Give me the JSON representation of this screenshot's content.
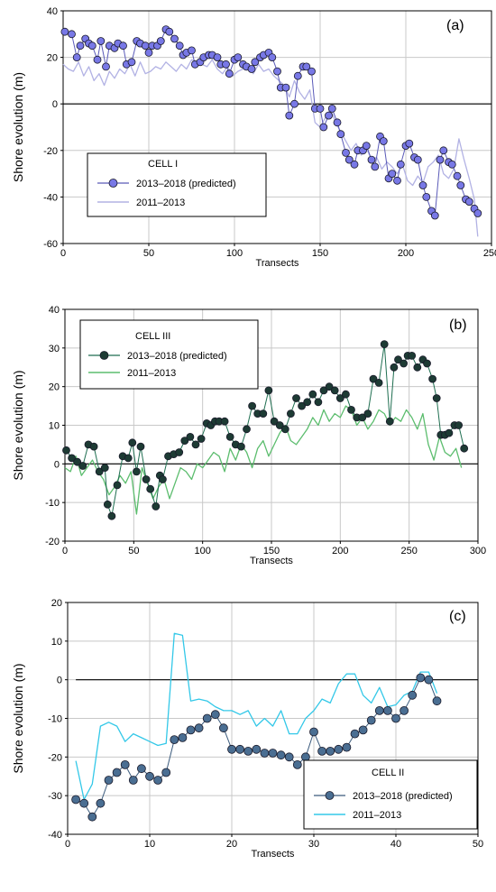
{
  "chart_data": [
    {
      "type": "line",
      "panel_label": "(a)",
      "legend_title": "CELL I",
      "xlabel": "Transects",
      "ylabel": "Shore evolution (m)",
      "xlim": [
        0,
        250
      ],
      "ylim": [
        -60,
        40
      ],
      "xticks": [
        0,
        50,
        100,
        150,
        200,
        250
      ],
      "yticks": [
        -60,
        -40,
        -20,
        0,
        20,
        40
      ],
      "grid": true,
      "legend_position": "lower-left",
      "series": [
        {
          "name": "2013–2018 (predicted)",
          "style": "line-markers",
          "line_color": "#5a5ab8",
          "marker_color": "#7878e6",
          "x": [
            1,
            5,
            8,
            10,
            13,
            15,
            17,
            20,
            22,
            25,
            27,
            30,
            32,
            35,
            37,
            40,
            43,
            45,
            48,
            50,
            52,
            55,
            57,
            60,
            62,
            65,
            68,
            70,
            72,
            75,
            77,
            80,
            82,
            85,
            87,
            90,
            92,
            95,
            97,
            100,
            102,
            105,
            107,
            110,
            112,
            115,
            117,
            120,
            122,
            125,
            127,
            130,
            132,
            135,
            137,
            140,
            142,
            145,
            147,
            150,
            152,
            155,
            157,
            160,
            162,
            165,
            167,
            170,
            172,
            175,
            177,
            180,
            182,
            185,
            187,
            190,
            192,
            195,
            197,
            200,
            202,
            205,
            207,
            210,
            212,
            215,
            217,
            220,
            222,
            225,
            227,
            230,
            232,
            235,
            237,
            240,
            242
          ],
          "y": [
            31,
            30,
            20,
            25,
            28,
            26,
            25,
            19,
            27,
            16,
            25,
            24,
            26,
            25,
            17,
            18,
            27,
            26,
            25,
            22,
            25,
            25,
            27,
            32,
            31,
            28,
            25,
            21,
            22,
            23,
            17,
            18,
            20,
            21,
            21,
            20,
            17,
            17,
            13,
            19,
            20,
            17,
            16,
            15,
            18,
            20,
            21,
            22,
            20,
            14,
            7,
            7,
            -5,
            0,
            12,
            16,
            16,
            14,
            -2,
            -2,
            -10,
            -5,
            -2,
            -8,
            -13,
            -21,
            -24,
            -26,
            -20,
            -20,
            -18,
            -24,
            -27,
            -14,
            -16,
            -32,
            -30,
            -33,
            -26,
            -18,
            -17,
            -23,
            -24,
            -35,
            -40,
            -46,
            -48,
            -24,
            -20,
            -25,
            -26,
            -31,
            -35,
            -41,
            -42,
            -45,
            -47
          ]
        },
        {
          "name": "2011–2013",
          "style": "line",
          "line_color": "#b2b2e4",
          "x": [
            0,
            3,
            6,
            9,
            12,
            15,
            18,
            21,
            24,
            27,
            30,
            33,
            36,
            39,
            42,
            45,
            48,
            51,
            54,
            57,
            60,
            63,
            66,
            69,
            72,
            75,
            78,
            81,
            84,
            87,
            90,
            93,
            96,
            99,
            102,
            105,
            108,
            111,
            114,
            117,
            120,
            123,
            126,
            129,
            132,
            135,
            138,
            141,
            144,
            147,
            150,
            153,
            156,
            159,
            162,
            165,
            168,
            171,
            174,
            177,
            180,
            183,
            186,
            189,
            192,
            195,
            198,
            201,
            204,
            207,
            210,
            213,
            216,
            219,
            222,
            225,
            228,
            231,
            234,
            237,
            240,
            242
          ],
          "y": [
            17,
            15,
            14,
            18,
            12,
            16,
            10,
            13,
            8,
            14,
            11,
            15,
            13,
            17,
            12,
            18,
            13,
            14,
            16,
            15,
            18,
            16,
            14,
            17,
            15,
            19,
            18,
            17,
            16,
            19,
            15,
            13,
            16,
            12,
            14,
            15,
            16,
            13,
            17,
            14,
            15,
            12,
            10,
            8,
            3,
            10,
            5,
            2,
            6,
            -8,
            -10,
            -6,
            -2,
            -8,
            -12,
            -16,
            -20,
            -17,
            -22,
            -19,
            -24,
            -23,
            -28,
            -25,
            -27,
            -30,
            -26,
            -33,
            -35,
            -31,
            -34,
            -27,
            -25,
            -22,
            -30,
            -32,
            -28,
            -15,
            -24,
            -32,
            -41,
            -57
          ]
        }
      ]
    },
    {
      "type": "line",
      "panel_label": "(b)",
      "legend_title": "CELL III",
      "xlabel": "Transects",
      "ylabel": "Shore evolution (m)",
      "xlim": [
        0,
        300
      ],
      "ylim": [
        -20,
        40
      ],
      "xticks": [
        0,
        50,
        100,
        150,
        200,
        250,
        300
      ],
      "yticks": [
        -20,
        -10,
        0,
        10,
        20,
        30,
        40
      ],
      "grid": true,
      "legend_position": "top-left",
      "series": [
        {
          "name": "2013–2018 (predicted)",
          "style": "line-markers",
          "line_color": "#1e6e50",
          "marker_color": "#1d3b34",
          "x": [
            1,
            5,
            9,
            13,
            17,
            21,
            25,
            29,
            31,
            34,
            38,
            42,
            46,
            49,
            52,
            55,
            59,
            62,
            66,
            69,
            71,
            75,
            79,
            83,
            87,
            91,
            95,
            99,
            103,
            106,
            109,
            112,
            116,
            120,
            124,
            128,
            132,
            136,
            140,
            144,
            148,
            152,
            156,
            160,
            164,
            168,
            172,
            176,
            180,
            184,
            188,
            192,
            196,
            200,
            204,
            208,
            212,
            216,
            220,
            224,
            228,
            232,
            236,
            239,
            242,
            246,
            249,
            252,
            256,
            260,
            263,
            267,
            270,
            273,
            276,
            279,
            283,
            286,
            290
          ],
          "y": [
            3.5,
            1.5,
            0.5,
            -0.5,
            5,
            4.5,
            -2,
            -1,
            -10.5,
            -13.5,
            -5.5,
            2,
            1.5,
            5.5,
            -2,
            4.5,
            -4,
            -6.5,
            -11,
            -3,
            -4,
            2,
            2.5,
            3,
            6,
            7,
            5,
            6.5,
            10.5,
            10,
            11,
            11,
            11,
            7,
            5,
            4.5,
            9,
            15,
            13,
            13,
            19,
            11,
            10,
            9,
            13,
            17,
            15,
            16,
            18,
            16,
            19,
            20,
            19,
            17,
            18,
            14,
            12,
            12,
            13,
            22,
            21,
            31,
            11,
            25,
            27,
            26,
            28,
            28,
            25,
            27,
            26,
            22,
            17,
            7.5,
            7.5,
            8,
            10,
            10,
            4
          ]
        },
        {
          "name": "2011–2013",
          "style": "line",
          "line_color": "#5cbd6e",
          "x": [
            0,
            4,
            8,
            12,
            16,
            20,
            24,
            28,
            32,
            36,
            40,
            44,
            48,
            52,
            56,
            60,
            64,
            68,
            72,
            76,
            80,
            84,
            88,
            92,
            96,
            100,
            104,
            108,
            112,
            116,
            120,
            124,
            128,
            132,
            136,
            140,
            144,
            148,
            152,
            156,
            160,
            164,
            168,
            172,
            176,
            180,
            184,
            188,
            192,
            196,
            200,
            204,
            208,
            212,
            216,
            220,
            224,
            228,
            232,
            236,
            240,
            244,
            248,
            252,
            256,
            260,
            264,
            268,
            272,
            276,
            280,
            284,
            288
          ],
          "y": [
            -1,
            -2,
            2,
            -3,
            -1,
            1,
            -2,
            -4,
            -8,
            -6,
            -3,
            -5,
            -2,
            -13,
            -1,
            -5,
            -9,
            -6,
            -4,
            -9,
            -5,
            -1,
            -2,
            -4,
            0,
            -1,
            1,
            3,
            2,
            -2,
            4,
            1,
            5,
            3,
            -1,
            4,
            6,
            2,
            5,
            8,
            10,
            6,
            5,
            7,
            9,
            12,
            10,
            14,
            11,
            13,
            12,
            15,
            14,
            10,
            12,
            9,
            11,
            14,
            13,
            10,
            12,
            11,
            14,
            12,
            9,
            13,
            5,
            1,
            7,
            3,
            2,
            4,
            -1
          ]
        }
      ]
    },
    {
      "type": "line",
      "panel_label": "(c)",
      "legend_title": "CELL II",
      "xlabel": "Transects",
      "ylabel": "Shore evolution (m)",
      "xlim": [
        0,
        50
      ],
      "ylim": [
        -40,
        20
      ],
      "xticks": [
        0,
        10,
        20,
        30,
        40,
        50
      ],
      "yticks": [
        -40,
        -30,
        -20,
        -10,
        0,
        10,
        20
      ],
      "grid": true,
      "legend_position": "bottom-right",
      "series": [
        {
          "name": "2013–2018 (predicted)",
          "style": "line-markers",
          "line_color": "#3a5a7c",
          "marker_color": "#4a6e92",
          "x": [
            1,
            2,
            3,
            4,
            5,
            6,
            7,
            8,
            9,
            10,
            11,
            12,
            13,
            14,
            15,
            16,
            17,
            18,
            19,
            20,
            21,
            22,
            23,
            24,
            25,
            26,
            27,
            28,
            29,
            30,
            31,
            32,
            33,
            34,
            35,
            36,
            37,
            38,
            39,
            40,
            41,
            42,
            43,
            44,
            45
          ],
          "y": [
            -31,
            -32,
            -35.5,
            -32,
            -26,
            -24,
            -22,
            -26,
            -23,
            -25,
            -26,
            -24,
            -15.5,
            -15,
            -13,
            -12.5,
            -10,
            -9,
            -12.5,
            -18,
            -18,
            -18.5,
            -18,
            -19,
            -19,
            -19.5,
            -20,
            -22,
            -20,
            -13.5,
            -18.5,
            -18.5,
            -18,
            -17.5,
            -14,
            -13,
            -10.5,
            -8,
            -8,
            -10,
            -8,
            -4,
            0.5,
            0,
            -5.5
          ]
        },
        {
          "name": "2011–2013",
          "style": "line",
          "line_color": "#33c8e8",
          "x": [
            1,
            2,
            3,
            4,
            5,
            6,
            7,
            8,
            9,
            10,
            11,
            12,
            13,
            14,
            15,
            16,
            17,
            18,
            19,
            20,
            21,
            22,
            23,
            24,
            25,
            26,
            27,
            28,
            29,
            30,
            31,
            32,
            33,
            34,
            35,
            36,
            37,
            38,
            39,
            40,
            41,
            42,
            43,
            44,
            45
          ],
          "y": [
            -21,
            -31,
            -27,
            -12,
            -11,
            -12,
            -16,
            -14,
            -15,
            -16,
            -17,
            -16.5,
            12,
            11.5,
            -5.5,
            -5,
            -5.5,
            -7,
            -8,
            -8,
            -9,
            -8,
            -12,
            -10,
            -12,
            -8,
            -14,
            -14,
            -10,
            -8,
            -5,
            -6,
            -1,
            1.5,
            1.5,
            -4,
            -6,
            -2,
            -7,
            -6.5,
            -4,
            -3,
            2,
            2,
            -3.5
          ]
        }
      ]
    }
  ]
}
